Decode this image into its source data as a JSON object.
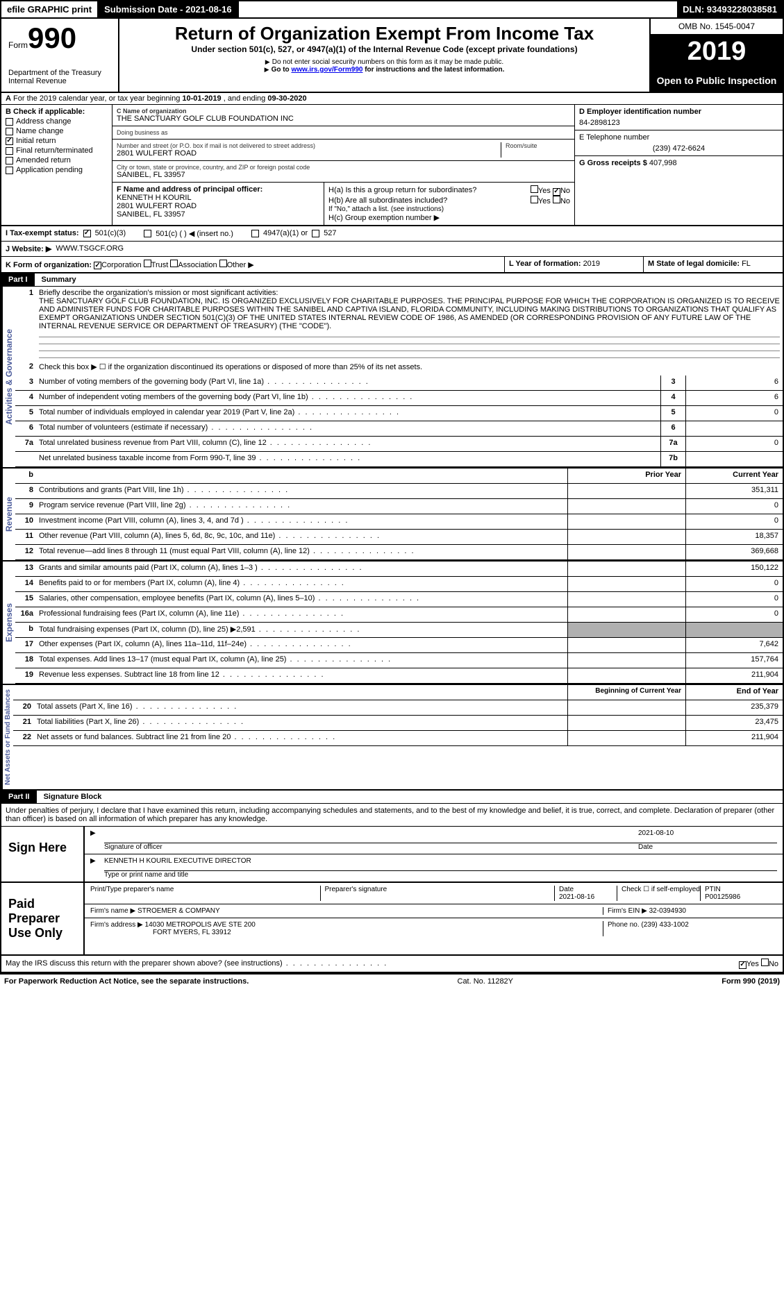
{
  "topbar": {
    "efile": "efile GRAPHIC print",
    "submission_label": "Submission Date - 2021-08-16",
    "dln_label": "DLN: 93493228038581"
  },
  "header": {
    "form_word": "Form",
    "form_num": "990",
    "dept": "Department of the Treasury",
    "irs": "Internal Revenue",
    "title": "Return of Organization Exempt From Income Tax",
    "subtitle": "Under section 501(c), 527, or 4947(a)(1) of the Internal Revenue Code (except private foundations)",
    "warn1": "Do not enter social security numbers on this form as it may be made public.",
    "warn2_pre": "Go to ",
    "warn2_link": "www.irs.gov/Form990",
    "warn2_post": " for instructions and the latest information.",
    "omb": "OMB No. 1545-0047",
    "year": "2019",
    "inspection": "Open to Public Inspection"
  },
  "row_a": {
    "label": "A",
    "text_pre": "For the 2019 calendar year, or tax year beginning ",
    "begin": "10-01-2019",
    "mid": " , and ending ",
    "end": "09-30-2020"
  },
  "section_b": {
    "label": "B Check if applicable:",
    "items": [
      "Address change",
      "Name change",
      "Initial return",
      "Final return/terminated",
      "Amended return",
      "Application pending"
    ],
    "initial_return_checked": true
  },
  "section_c": {
    "name_label": "C Name of organization",
    "name": "THE SANCTUARY GOLF CLUB FOUNDATION INC",
    "dba_label": "Doing business as",
    "dba": "",
    "addr_label": "Number and street (or P.O. box if mail is not delivered to street address)",
    "room_label": "Room/suite",
    "addr": "2801 WULFERT ROAD",
    "city_label": "City or town, state or province, country, and ZIP or foreign postal code",
    "city": "SANIBEL, FL  33957"
  },
  "section_d": {
    "label": "D Employer identification number",
    "ein": "84-2898123"
  },
  "section_e": {
    "label": "E Telephone number",
    "phone": "(239) 472-6624"
  },
  "section_g": {
    "label": "G Gross receipts $",
    "amount": "407,998"
  },
  "section_f": {
    "label": "F  Name and address of principal officer:",
    "name": "KENNETH H KOURIL",
    "addr1": "2801 WULFERT ROAD",
    "addr2": "SANIBEL, FL  33957"
  },
  "section_h": {
    "ha_label": "H(a)  Is this a group return for subordinates?",
    "hb_label": "H(b)  Are all subordinates included?",
    "hb_note": "If \"No,\" attach a list. (see instructions)",
    "hc_label": "H(c)  Group exemption number ▶",
    "yes": "Yes",
    "no": "No",
    "ha_no_checked": true
  },
  "row_i": {
    "label": "I   Tax-exempt status:",
    "opt1": "501(c)(3)",
    "opt2": "501(c) (  ) ◀ (insert no.)",
    "opt3": "4947(a)(1) or",
    "opt4": "527",
    "opt1_checked": true
  },
  "row_j": {
    "label": "J   Website: ▶",
    "value": "WWW.TSGCF.ORG"
  },
  "row_k": {
    "label": "K Form of organization:",
    "opts": [
      "Corporation",
      "Trust",
      "Association",
      "Other ▶"
    ],
    "corp_checked": true
  },
  "row_l": {
    "label": "L Year of formation: ",
    "value": "2019"
  },
  "row_m": {
    "label": "M State of legal domicile: ",
    "value": "FL"
  },
  "part1": {
    "header": "Part I",
    "title": "Summary",
    "side_ag": "Activities & Governance",
    "side_rev": "Revenue",
    "side_exp": "Expenses",
    "side_net": "Net Assets or Fund Balances",
    "line1_label": "Briefly describe the organization's mission or most significant activities:",
    "line1_text": "THE SANCTUARY GOLF CLUB FOUNDATION, INC. IS ORGANIZED EXCLUSIVELY FOR CHARITABLE PURPOSES. THE PRINCIPAL PURPOSE FOR WHICH THE CORPORATION IS ORGANIZED IS TO RECEIVE AND ADMINISTER FUNDS FOR CHARITABLE PURPOSES WITHIN THE SANIBEL AND CAPTIVA ISLAND, FLORIDA COMMUNITY, INCLUDING MAKING DISTRIBUTIONS TO ORGANIZATIONS THAT QUALIFY AS EXEMPT ORGANIZATIONS UNDER SECTION 501(C)(3) OF THE UNITED STATES INTERNAL REVIEW CODE OF 1986, AS AMENDED (OR CORRESPONDING PROVISION OF ANY FUTURE LAW OF THE INTERNAL REVENUE SERVICE OR DEPARTMENT OF TREASURY) (THE \"CODE\").",
    "line2": "Check this box ▶ ☐ if the organization discontinued its operations or disposed of more than 25% of its net assets.",
    "rows_ag": [
      {
        "n": "3",
        "d": "Number of voting members of the governing body (Part VI, line 1a)",
        "box": "3",
        "v": "6"
      },
      {
        "n": "4",
        "d": "Number of independent voting members of the governing body (Part VI, line 1b)",
        "box": "4",
        "v": "6"
      },
      {
        "n": "5",
        "d": "Total number of individuals employed in calendar year 2019 (Part V, line 2a)",
        "box": "5",
        "v": "0"
      },
      {
        "n": "6",
        "d": "Total number of volunteers (estimate if necessary)",
        "box": "6",
        "v": ""
      },
      {
        "n": "7a",
        "d": "Total unrelated business revenue from Part VIII, column (C), line 12",
        "box": "7a",
        "v": "0"
      },
      {
        "n": "",
        "d": "Net unrelated business taxable income from Form 990-T, line 39",
        "box": "7b",
        "v": ""
      }
    ],
    "col_prior": "Prior Year",
    "col_current": "Current Year",
    "rows_rev": [
      {
        "n": "8",
        "d": "Contributions and grants (Part VIII, line 1h)",
        "p": "",
        "c": "351,311"
      },
      {
        "n": "9",
        "d": "Program service revenue (Part VIII, line 2g)",
        "p": "",
        "c": "0"
      },
      {
        "n": "10",
        "d": "Investment income (Part VIII, column (A), lines 3, 4, and 7d )",
        "p": "",
        "c": "0"
      },
      {
        "n": "11",
        "d": "Other revenue (Part VIII, column (A), lines 5, 6d, 8c, 9c, 10c, and 11e)",
        "p": "",
        "c": "18,357"
      },
      {
        "n": "12",
        "d": "Total revenue—add lines 8 through 11 (must equal Part VIII, column (A), line 12)",
        "p": "",
        "c": "369,668"
      }
    ],
    "rows_exp": [
      {
        "n": "13",
        "d": "Grants and similar amounts paid (Part IX, column (A), lines 1–3 )",
        "p": "",
        "c": "150,122"
      },
      {
        "n": "14",
        "d": "Benefits paid to or for members (Part IX, column (A), line 4)",
        "p": "",
        "c": "0"
      },
      {
        "n": "15",
        "d": "Salaries, other compensation, employee benefits (Part IX, column (A), lines 5–10)",
        "p": "",
        "c": "0"
      },
      {
        "n": "16a",
        "d": "Professional fundraising fees (Part IX, column (A), line 11e)",
        "p": "",
        "c": "0"
      },
      {
        "n": "b",
        "d": "Total fundraising expenses (Part IX, column (D), line 25) ▶2,591",
        "p": "shaded",
        "c": "shaded"
      },
      {
        "n": "17",
        "d": "Other expenses (Part IX, column (A), lines 11a–11d, 11f–24e)",
        "p": "",
        "c": "7,642"
      },
      {
        "n": "18",
        "d": "Total expenses. Add lines 13–17 (must equal Part IX, column (A), line 25)",
        "p": "",
        "c": "157,764"
      },
      {
        "n": "19",
        "d": "Revenue less expenses. Subtract line 18 from line 12",
        "p": "",
        "c": "211,904"
      }
    ],
    "col_begin": "Beginning of Current Year",
    "col_end": "End of Year",
    "rows_net": [
      {
        "n": "20",
        "d": "Total assets (Part X, line 16)",
        "p": "",
        "c": "235,379"
      },
      {
        "n": "21",
        "d": "Total liabilities (Part X, line 26)",
        "p": "",
        "c": "23,475"
      },
      {
        "n": "22",
        "d": "Net assets or fund balances. Subtract line 21 from line 20",
        "p": "",
        "c": "211,904"
      }
    ]
  },
  "part2": {
    "header": "Part II",
    "title": "Signature Block",
    "declaration": "Under penalties of perjury, I declare that I have examined this return, including accompanying schedules and statements, and to the best of my knowledge and belief, it is true, correct, and complete. Declaration of preparer (other than officer) is based on all information of which preparer has any knowledge.",
    "sign_here": "Sign Here",
    "sig_officer_label": "Signature of officer",
    "date_label": "Date",
    "sig_date": "2021-08-10",
    "typed_name": "KENNETH H KOURIL  EXECUTIVE DIRECTOR",
    "typed_label": "Type or print name and title",
    "paid_preparer": "Paid Preparer Use Only",
    "prep_name_label": "Print/Type preparer's name",
    "prep_sig_label": "Preparer's signature",
    "prep_date_label": "Date",
    "prep_date": "2021-08-16",
    "check_if_label": "Check ☐ if self-employed",
    "ptin_label": "PTIN",
    "ptin": "P00125986",
    "firm_name_label": "Firm's name    ▶",
    "firm_name": "STROEMER & COMPANY",
    "firm_ein_label": "Firm's EIN ▶",
    "firm_ein": "32-0394930",
    "firm_addr_label": "Firm's address ▶",
    "firm_addr1": "14030 METROPOLIS AVE STE 200",
    "firm_addr2": "FORT MYERS, FL  33912",
    "phone_label": "Phone no.",
    "phone": "(239) 433-1002",
    "may_irs": "May the IRS discuss this return with the preparer shown above? (see instructions)",
    "yes": "Yes",
    "no": "No",
    "may_yes_checked": true
  },
  "footer": {
    "left": "For Paperwork Reduction Act Notice, see the separate instructions.",
    "mid": "Cat. No. 11282Y",
    "right": "Form 990 (2019)"
  }
}
